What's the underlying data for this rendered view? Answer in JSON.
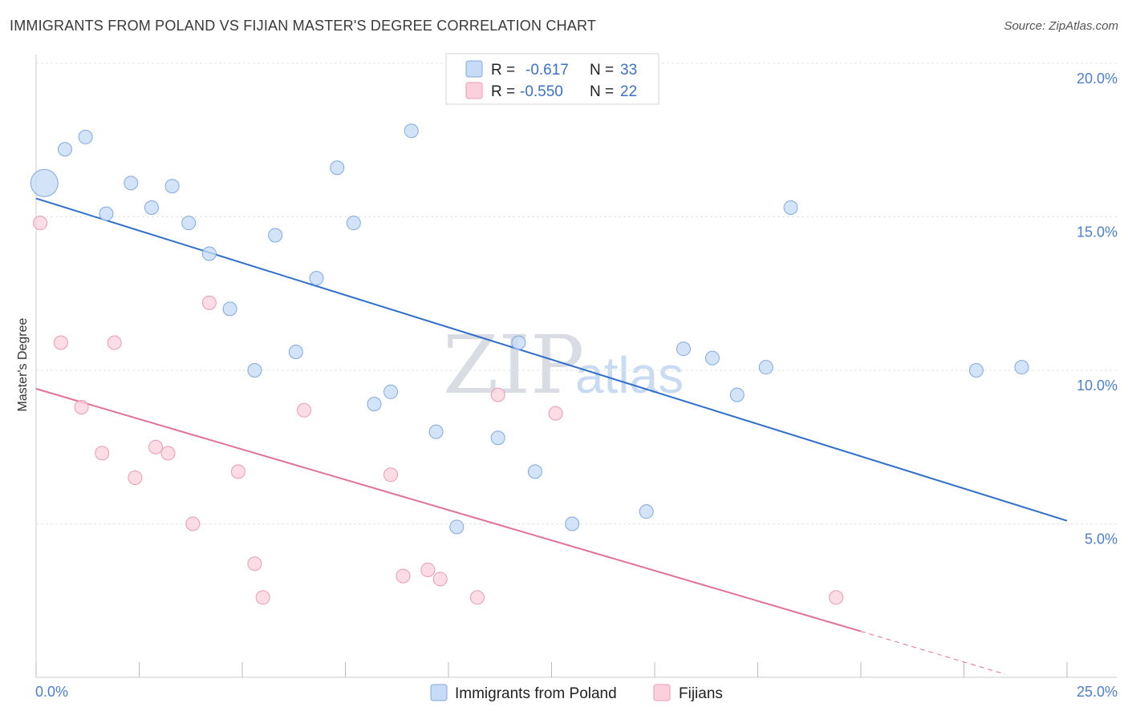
{
  "title": "IMMIGRANTS FROM POLAND VS FIJIAN MASTER'S DEGREE CORRELATION CHART",
  "source": "Source: ZipAtlas.com",
  "watermark": {
    "zip": "ZIP",
    "atlas": "atlas"
  },
  "colors": {
    "blue_fill": "#c5dbf6",
    "blue_stroke": "#7fa9e3",
    "blue_line": "#2f6fcc",
    "pink_fill": "#fbd0dc",
    "pink_stroke": "#ec9ab3",
    "pink_line": "#e0709a",
    "grid": "#e3e3e3",
    "tick_text": "#4a7fd0"
  },
  "chart_data": {
    "type": "scatter",
    "xlabel": "",
    "ylabel": "Master's Degree",
    "xlim": [
      0,
      25
    ],
    "ylim": [
      0,
      20.5
    ],
    "x_tick_labels": [
      "0.0%",
      "25.0%"
    ],
    "y_ticks": [
      5,
      10,
      15,
      20
    ],
    "y_tick_labels": [
      "5.0%",
      "10.0%",
      "15.0%",
      "20.0%"
    ],
    "legend": [
      {
        "name": "Immigrants from Poland",
        "r_label": "R =",
        "r": "-0.617",
        "n_label": "N =",
        "n": "33"
      },
      {
        "name": "Fijians",
        "r_label": "R =",
        "r": "-0.550",
        "n_label": "N =",
        "n": "22"
      }
    ],
    "series": [
      {
        "name": "Immigrants from Poland",
        "color": "blue",
        "points": [
          {
            "x": 0.2,
            "y": 16.1,
            "size": "large"
          },
          {
            "x": 0.7,
            "y": 17.2
          },
          {
            "x": 1.2,
            "y": 17.6
          },
          {
            "x": 1.7,
            "y": 15.1
          },
          {
            "x": 2.3,
            "y": 16.1
          },
          {
            "x": 2.8,
            "y": 15.3
          },
          {
            "x": 3.3,
            "y": 16.0
          },
          {
            "x": 3.7,
            "y": 14.8
          },
          {
            "x": 4.2,
            "y": 13.8
          },
          {
            "x": 4.7,
            "y": 12.0
          },
          {
            "x": 5.3,
            "y": 10.0
          },
          {
            "x": 5.8,
            "y": 14.4
          },
          {
            "x": 6.3,
            "y": 10.6
          },
          {
            "x": 6.8,
            "y": 13.0
          },
          {
            "x": 7.3,
            "y": 16.6
          },
          {
            "x": 7.7,
            "y": 14.8
          },
          {
            "x": 8.2,
            "y": 8.9
          },
          {
            "x": 8.6,
            "y": 9.3
          },
          {
            "x": 9.1,
            "y": 17.8
          },
          {
            "x": 9.7,
            "y": 8.0
          },
          {
            "x": 10.2,
            "y": 4.9
          },
          {
            "x": 11.2,
            "y": 7.8
          },
          {
            "x": 11.7,
            "y": 10.9
          },
          {
            "x": 12.1,
            "y": 6.7
          },
          {
            "x": 13.0,
            "y": 5.0
          },
          {
            "x": 14.8,
            "y": 5.4
          },
          {
            "x": 15.7,
            "y": 10.7
          },
          {
            "x": 16.4,
            "y": 10.4
          },
          {
            "x": 17.0,
            "y": 9.2
          },
          {
            "x": 17.7,
            "y": 10.1
          },
          {
            "x": 18.3,
            "y": 15.3
          },
          {
            "x": 22.8,
            "y": 10.0
          },
          {
            "x": 23.9,
            "y": 10.1
          }
        ],
        "trend": {
          "x0": 0,
          "y0": 15.6,
          "x1": 25.0,
          "y1": 5.1
        }
      },
      {
        "name": "Fijians",
        "color": "pink",
        "points": [
          {
            "x": 0.1,
            "y": 14.8
          },
          {
            "x": 0.6,
            "y": 10.9
          },
          {
            "x": 1.1,
            "y": 8.8
          },
          {
            "x": 1.6,
            "y": 7.3
          },
          {
            "x": 1.9,
            "y": 10.9
          },
          {
            "x": 2.4,
            "y": 6.5
          },
          {
            "x": 2.9,
            "y": 7.5
          },
          {
            "x": 3.2,
            "y": 7.3
          },
          {
            "x": 3.8,
            "y": 5.0
          },
          {
            "x": 4.2,
            "y": 12.2
          },
          {
            "x": 4.9,
            "y": 6.7
          },
          {
            "x": 5.3,
            "y": 3.7
          },
          {
            "x": 5.5,
            "y": 2.6
          },
          {
            "x": 6.5,
            "y": 8.7
          },
          {
            "x": 8.6,
            "y": 6.6
          },
          {
            "x": 8.9,
            "y": 3.3
          },
          {
            "x": 9.5,
            "y": 3.5
          },
          {
            "x": 9.8,
            "y": 3.2
          },
          {
            "x": 10.7,
            "y": 2.6
          },
          {
            "x": 11.2,
            "y": 9.2
          },
          {
            "x": 12.6,
            "y": 8.6
          },
          {
            "x": 19.4,
            "y": 2.6
          }
        ],
        "trend": {
          "x0": 0,
          "y0": 9.4,
          "x1": 20.0,
          "y1": 1.5
        },
        "trend_dashed": {
          "x0": 20.0,
          "y0": 1.5,
          "x1": 23.5,
          "y1": 0.1
        }
      }
    ]
  }
}
